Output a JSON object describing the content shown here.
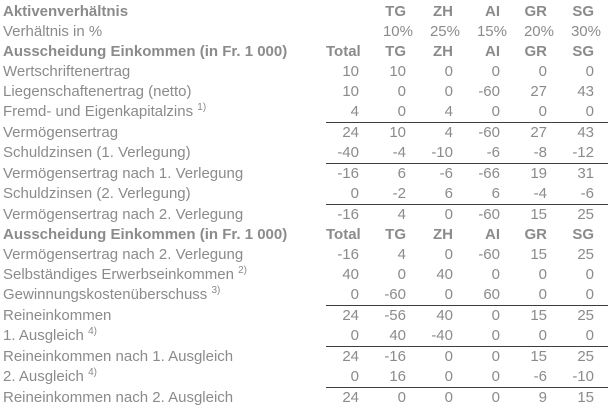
{
  "table": {
    "columns": [
      "Total",
      "TG",
      "ZH",
      "AI",
      "GR",
      "SG"
    ],
    "colors": {
      "text": "#8b8b8b",
      "rule_line": "#3d3d3d",
      "background": "#ffffff"
    },
    "rows": [
      {
        "label": "Aktivenverhältnis",
        "bold": true,
        "values": [
          "",
          "TG",
          "ZH",
          "AI",
          "GR",
          "SG"
        ]
      },
      {
        "label": "Verhältnis in %",
        "percent": true,
        "values": [
          "",
          "10%",
          "25%",
          "15%",
          "20%",
          "30%"
        ]
      },
      {
        "label": "Ausscheidung Einkommen (in Fr. 1 000)",
        "bold": true,
        "values": [
          "Total",
          "TG",
          "ZH",
          "AI",
          "GR",
          "SG"
        ]
      },
      {
        "label": "Wertschriftenertrag",
        "values": [
          10,
          10,
          0,
          0,
          0,
          0
        ]
      },
      {
        "label": "Liegenschaftenertrag (netto)",
        "values": [
          10,
          0,
          0,
          -60,
          27,
          43
        ]
      },
      {
        "label": "Fremd- und Eigenkapitalzins",
        "sup": "1)",
        "underline": true,
        "values": [
          4,
          0,
          4,
          0,
          0,
          0
        ]
      },
      {
        "label": "Vermögensertrag",
        "values": [
          24,
          10,
          4,
          -60,
          27,
          43
        ]
      },
      {
        "label": "Schuldzinsen (1. Verlegung)",
        "underline": true,
        "values": [
          -40,
          -4,
          -10,
          -6,
          -8,
          -12
        ]
      },
      {
        "label": "Vermögensertrag nach 1. Verlegung",
        "values": [
          -16,
          6,
          -6,
          -66,
          19,
          31
        ]
      },
      {
        "label": "Schuldzinsen (2. Verlegung)",
        "underline": true,
        "values": [
          0,
          -2,
          6,
          6,
          -4,
          -6
        ]
      },
      {
        "label": "Vermögensertrag nach 2. Verlegung",
        "values": [
          -16,
          4,
          0,
          -60,
          15,
          25
        ]
      },
      {
        "label": "Ausscheidung Einkommen (in Fr. 1 000)",
        "bold": true,
        "values": [
          "Total",
          "TG",
          "ZH",
          "AI",
          "GR",
          "SG"
        ]
      },
      {
        "label": "Vermögensertrag nach 2. Verlegung",
        "values": [
          -16,
          4,
          0,
          -60,
          15,
          25
        ]
      },
      {
        "label": "Selbständiges Erwerbseinkommen",
        "sup": "2)",
        "values": [
          40,
          0,
          40,
          0,
          0,
          0
        ]
      },
      {
        "label": "Gewinnungskostenüberschuss",
        "sup": "3)",
        "underline": true,
        "values": [
          0,
          -60,
          0,
          60,
          0,
          0
        ]
      },
      {
        "label": "Reineinkommen",
        "values": [
          24,
          -56,
          40,
          0,
          15,
          25
        ]
      },
      {
        "label": "1. Ausgleich",
        "sup": "4)",
        "underline": true,
        "values": [
          0,
          40,
          -40,
          0,
          0,
          0
        ]
      },
      {
        "label": "Reineinkommen nach 1. Ausgleich",
        "values": [
          24,
          -16,
          0,
          0,
          15,
          25
        ]
      },
      {
        "label": "2. Ausgleich",
        "sup": "4)",
        "underline": true,
        "values": [
          0,
          16,
          0,
          0,
          -6,
          -10
        ]
      },
      {
        "label": "Reineinkommen nach 2. Ausgleich",
        "values": [
          24,
          0,
          0,
          0,
          9,
          15
        ]
      }
    ]
  }
}
